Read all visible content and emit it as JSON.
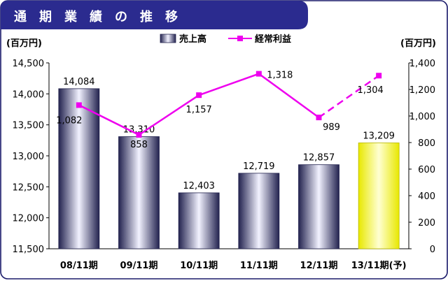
{
  "header": {
    "title": "通　期　業　績　の　推　移"
  },
  "colors": {
    "header_bg": "#2B2B8F",
    "frame_border": "#1A1A6A",
    "bar_edge": "#23234F",
    "bar_mid": "#F2F2FF",
    "forecast_bar_edge": "#E8E800",
    "forecast_bar_mid": "#FFFFD2",
    "line": "#EE00EE"
  },
  "chart_data": {
    "type": "bar",
    "title": "",
    "categories": [
      "08/11期",
      "09/11期",
      "10/11期",
      "11/11期",
      "12/11期",
      "13/11期(予)"
    ],
    "legend": {
      "position": "top-center",
      "items": [
        "売上高",
        "経常利益"
      ]
    },
    "left_axis": {
      "unit_label": "(百万円)",
      "ylim": [
        11500,
        14500
      ],
      "ticks": [
        "11,500",
        "12,000",
        "12,500",
        "13,000",
        "13,500",
        "14,000",
        "14,500"
      ],
      "tick_values": [
        11500,
        12000,
        12500,
        13000,
        13500,
        14000,
        14500
      ]
    },
    "right_axis": {
      "unit_label": "(百万円)",
      "ylim": [
        0,
        1400
      ],
      "ticks": [
        "0",
        "200",
        "400",
        "600",
        "800",
        "1,000",
        "1,200",
        "1,400"
      ],
      "tick_values": [
        0,
        200,
        400,
        600,
        800,
        1000,
        1200,
        1400
      ]
    },
    "grid": false,
    "series": [
      {
        "name": "売上高",
        "kind": "bar",
        "axis": "left",
        "values": [
          14084,
          13310,
          12403,
          12719,
          12857,
          13209
        ],
        "labels": [
          "14,084",
          "13,310",
          "12,403",
          "12,719",
          "12,857",
          "13,209"
        ],
        "forecast_index": 5
      },
      {
        "name": "経常利益",
        "kind": "line",
        "axis": "right",
        "values": [
          1082,
          858,
          1157,
          1318,
          989,
          1304
        ],
        "labels": [
          "1,082",
          "858",
          "1,157",
          "1,318",
          "989",
          "1,304"
        ],
        "dashed_from_index": 4
      }
    ]
  }
}
